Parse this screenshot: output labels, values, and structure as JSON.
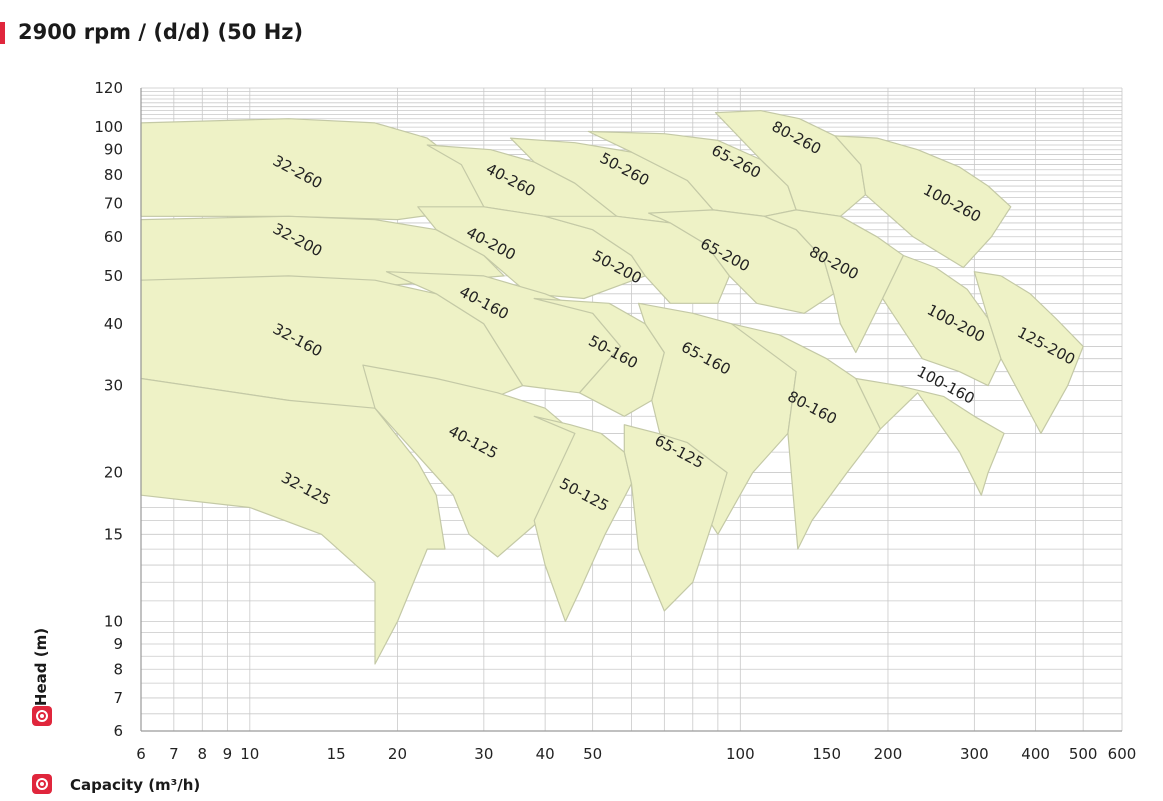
{
  "header": {
    "title": "2900 rpm / (d/d) (50 Hz)"
  },
  "colors": {
    "accent": "#e0263c",
    "region_fill": "#eef2c6",
    "region_stroke": "#c4c9a6",
    "grid": "#c9c9c9"
  },
  "chart_data": {
    "type": "area",
    "title": "",
    "xlabel": "Capacity (m³/h)",
    "ylabel": "Head (m)",
    "x_scale": "log",
    "y_scale": "log",
    "xlim": [
      6,
      600
    ],
    "ylim": [
      6,
      120
    ],
    "grid": true,
    "x_ticks": [
      6,
      7,
      8,
      9,
      10,
      15,
      20,
      30,
      40,
      50,
      100,
      150,
      200,
      300,
      400,
      500,
      600
    ],
    "y_ticks": [
      6,
      7,
      8,
      9,
      10,
      15,
      20,
      30,
      40,
      50,
      60,
      70,
      80,
      90,
      100,
      120
    ],
    "series": [
      {
        "name": "32-260",
        "label_at": [
          12.5,
          81
        ],
        "outline": [
          [
            6,
            102
          ],
          [
            12,
            104
          ],
          [
            18,
            102
          ],
          [
            23,
            95
          ],
          [
            27,
            84
          ],
          [
            30,
            74
          ],
          [
            31,
            69
          ],
          [
            20,
            65
          ],
          [
            12,
            66
          ],
          [
            6,
            66
          ]
        ]
      },
      {
        "name": "40-260",
        "label_at": [
          34,
          78
        ],
        "outline": [
          [
            23,
            92
          ],
          [
            31,
            90
          ],
          [
            38,
            85
          ],
          [
            46,
            77
          ],
          [
            56,
            66
          ],
          [
            50,
            64
          ],
          [
            40,
            66
          ],
          [
            30,
            69
          ],
          [
            27,
            84
          ]
        ]
      },
      {
        "name": "50-260",
        "label_at": [
          58,
          82
        ],
        "outline": [
          [
            34,
            95
          ],
          [
            46,
            93
          ],
          [
            60,
            89
          ],
          [
            78,
            78
          ],
          [
            88,
            68
          ],
          [
            72,
            64
          ],
          [
            56,
            66
          ],
          [
            46,
            77
          ],
          [
            38,
            85
          ]
        ]
      },
      {
        "name": "65-260",
        "label_at": [
          98,
          85
        ],
        "outline": [
          [
            49,
            98
          ],
          [
            70,
            97
          ],
          [
            90,
            94
          ],
          [
            110,
            86
          ],
          [
            125,
            76
          ],
          [
            130,
            68
          ],
          [
            112,
            66
          ],
          [
            88,
            68
          ],
          [
            78,
            78
          ],
          [
            60,
            89
          ]
        ]
      },
      {
        "name": "80-260",
        "label_at": [
          130,
          95
        ],
        "outline": [
          [
            89,
            107
          ],
          [
            110,
            108
          ],
          [
            132,
            104
          ],
          [
            156,
            96
          ],
          [
            176,
            84
          ],
          [
            180,
            73
          ],
          [
            160,
            66
          ],
          [
            130,
            68
          ],
          [
            125,
            76
          ],
          [
            110,
            86
          ]
        ]
      },
      {
        "name": "100-260",
        "label_at": [
          270,
          70
        ],
        "outline": [
          [
            156,
            96
          ],
          [
            190,
            95
          ],
          [
            230,
            90
          ],
          [
            280,
            83
          ],
          [
            320,
            76
          ],
          [
            356,
            69
          ],
          [
            325,
            60
          ],
          [
            285,
            52
          ],
          [
            225,
            60
          ],
          [
            180,
            73
          ],
          [
            176,
            84
          ]
        ]
      },
      {
        "name": "32-200",
        "label_at": [
          12.5,
          59
        ],
        "outline": [
          [
            6,
            65
          ],
          [
            12,
            66
          ],
          [
            18,
            65
          ],
          [
            24,
            62
          ],
          [
            30,
            55
          ],
          [
            33,
            50
          ],
          [
            20,
            48
          ],
          [
            12,
            49
          ],
          [
            6,
            49
          ]
        ]
      },
      {
        "name": "40-200",
        "label_at": [
          31,
          58
        ],
        "outline": [
          [
            22,
            69
          ],
          [
            30,
            69
          ],
          [
            40,
            66
          ],
          [
            50,
            62
          ],
          [
            60,
            55
          ],
          [
            64,
            50
          ],
          [
            48,
            45
          ],
          [
            37,
            46
          ],
          [
            30,
            55
          ],
          [
            24,
            62
          ]
        ]
      },
      {
        "name": "50-200",
        "label_at": [
          56,
          52
        ],
        "outline": [
          [
            40,
            66
          ],
          [
            56,
            66
          ],
          [
            72,
            64
          ],
          [
            85,
            58
          ],
          [
            95,
            50
          ],
          [
            90,
            44
          ],
          [
            72,
            44
          ],
          [
            64,
            50
          ],
          [
            60,
            55
          ],
          [
            50,
            62
          ]
        ]
      },
      {
        "name": "65-200",
        "label_at": [
          93,
          55
        ],
        "outline": [
          [
            65,
            67
          ],
          [
            88,
            68
          ],
          [
            112,
            66
          ],
          [
            130,
            62
          ],
          [
            148,
            54
          ],
          [
            155,
            46
          ],
          [
            135,
            42
          ],
          [
            108,
            44
          ],
          [
            95,
            50
          ],
          [
            85,
            58
          ],
          [
            72,
            64
          ]
        ]
      },
      {
        "name": "80-200",
        "label_at": [
          155,
          53
        ],
        "outline": [
          [
            112,
            66
          ],
          [
            130,
            68
          ],
          [
            160,
            66
          ],
          [
            190,
            60
          ],
          [
            215,
            55
          ],
          [
            195,
            45
          ],
          [
            172,
            35
          ],
          [
            160,
            40
          ],
          [
            155,
            46
          ],
          [
            148,
            54
          ],
          [
            130,
            62
          ]
        ]
      },
      {
        "name": "100-200",
        "label_at": [
          275,
          40
        ],
        "outline": [
          [
            215,
            55
          ],
          [
            250,
            52
          ],
          [
            290,
            47
          ],
          [
            320,
            41
          ],
          [
            340,
            34
          ],
          [
            320,
            30
          ],
          [
            280,
            32
          ],
          [
            235,
            34
          ],
          [
            195,
            45
          ]
        ]
      },
      {
        "name": "125-200",
        "label_at": [
          420,
          36
        ],
        "outline": [
          [
            300,
            51
          ],
          [
            340,
            50
          ],
          [
            390,
            46
          ],
          [
            440,
            41
          ],
          [
            500,
            36
          ],
          [
            465,
            30
          ],
          [
            410,
            24
          ],
          [
            340,
            34
          ],
          [
            320,
            41
          ]
        ]
      },
      {
        "name": "32-160",
        "label_at": [
          12.5,
          37
        ],
        "outline": [
          [
            6,
            49
          ],
          [
            12,
            50
          ],
          [
            18,
            49
          ],
          [
            24,
            46
          ],
          [
            30,
            40
          ],
          [
            36,
            30
          ],
          [
            28,
            27
          ],
          [
            18,
            26
          ],
          [
            12,
            28
          ],
          [
            6,
            31
          ]
        ]
      },
      {
        "name": "40-160",
        "label_at": [
          30,
          44
        ],
        "outline": [
          [
            19,
            51
          ],
          [
            30,
            50
          ],
          [
            40,
            46
          ],
          [
            50,
            42
          ],
          [
            57,
            36
          ],
          [
            47,
            29
          ],
          [
            36,
            30
          ],
          [
            30,
            40
          ],
          [
            24,
            46
          ]
        ]
      },
      {
        "name": "50-160",
        "label_at": [
          55,
          35
        ],
        "outline": [
          [
            38,
            45
          ],
          [
            54,
            44
          ],
          [
            64,
            40
          ],
          [
            70,
            35
          ],
          [
            66,
            28
          ],
          [
            58,
            26
          ],
          [
            47,
            29
          ],
          [
            57,
            36
          ],
          [
            50,
            42
          ]
        ]
      },
      {
        "name": "65-160",
        "label_at": [
          85,
          34
        ],
        "outline": [
          [
            62,
            44
          ],
          [
            80,
            42
          ],
          [
            96,
            40
          ],
          [
            115,
            36
          ],
          [
            130,
            32
          ],
          [
            125,
            24
          ],
          [
            106,
            20
          ],
          [
            90,
            15
          ],
          [
            70,
            22
          ],
          [
            66,
            28
          ],
          [
            70,
            35
          ],
          [
            64,
            40
          ]
        ]
      },
      {
        "name": "80-160",
        "label_at": [
          140,
          27
        ],
        "outline": [
          [
            96,
            40
          ],
          [
            120,
            38
          ],
          [
            150,
            34
          ],
          [
            172,
            31
          ],
          [
            193,
            24.5
          ],
          [
            165,
            20
          ],
          [
            140,
            16
          ],
          [
            131,
            14
          ],
          [
            125,
            24
          ],
          [
            130,
            32
          ]
        ]
      },
      {
        "name": "100-160",
        "label_at": [
          262,
          30
        ],
        "outline": [
          [
            172,
            31
          ],
          [
            210,
            30
          ],
          [
            260,
            28.5
          ],
          [
            300,
            26
          ],
          [
            345,
            24
          ],
          [
            320,
            20
          ],
          [
            310,
            18
          ],
          [
            280,
            22
          ],
          [
            230,
            29
          ],
          [
            193,
            24.5
          ]
        ]
      },
      {
        "name": "32-125",
        "label_at": [
          13,
          18.5
        ],
        "outline": [
          [
            6,
            18
          ],
          [
            10,
            17
          ],
          [
            14,
            15
          ],
          [
            18,
            12
          ],
          [
            18,
            8.2
          ],
          [
            20,
            10
          ],
          [
            23,
            14
          ],
          [
            25,
            14
          ],
          [
            24,
            18
          ],
          [
            22,
            21
          ],
          [
            18,
            27
          ],
          [
            12,
            28
          ],
          [
            6,
            31
          ]
        ]
      },
      {
        "name": "40-125",
        "label_at": [
          28.5,
          23
        ],
        "outline": [
          [
            17,
            33
          ],
          [
            24,
            31
          ],
          [
            32,
            29
          ],
          [
            40,
            27
          ],
          [
            46,
            24
          ],
          [
            43,
            20
          ],
          [
            39,
            16
          ],
          [
            32,
            13.5
          ],
          [
            28,
            15
          ],
          [
            26,
            18
          ],
          [
            18,
            27
          ]
        ]
      },
      {
        "name": "50-125",
        "label_at": [
          48,
          18
        ],
        "outline": [
          [
            38,
            26
          ],
          [
            45,
            25
          ],
          [
            52,
            24
          ],
          [
            58,
            22
          ],
          [
            60,
            19
          ],
          [
            53,
            15
          ],
          [
            47,
            11.5
          ],
          [
            44,
            10
          ],
          [
            40,
            13
          ],
          [
            38,
            16
          ],
          [
            46,
            24
          ]
        ]
      },
      {
        "name": "65-125",
        "label_at": [
          75,
          22
        ],
        "outline": [
          [
            58,
            25
          ],
          [
            68,
            24
          ],
          [
            78,
            23
          ],
          [
            88,
            21
          ],
          [
            94,
            20
          ],
          [
            88,
            16
          ],
          [
            80,
            12
          ],
          [
            70,
            10.5
          ],
          [
            62,
            14
          ],
          [
            60,
            19
          ],
          [
            58,
            22
          ]
        ]
      }
    ]
  }
}
